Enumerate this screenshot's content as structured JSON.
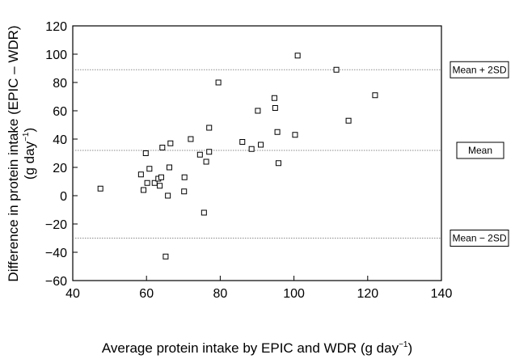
{
  "chart_data": {
    "type": "scatter",
    "title": "",
    "xlabel": {
      "main": "Average protein intake by EPIC and WDR (g day",
      "sup": "−1",
      "close": ")"
    },
    "ylabel": {
      "line1": "Difference in protein intake (EPIC – WDR)",
      "line2_main": "(g day",
      "line2_sup": "−1",
      "line2_close": ")"
    },
    "xlim": [
      40,
      140
    ],
    "ylim": [
      -60,
      120
    ],
    "xticks": [
      40,
      60,
      80,
      100,
      120,
      140
    ],
    "yticks": [
      -60,
      -40,
      -20,
      0,
      20,
      40,
      60,
      80,
      100,
      120
    ],
    "xtick_labels": [
      "40",
      "60",
      "80",
      "100",
      "120",
      "140"
    ],
    "ytick_labels": [
      "−60",
      "−40",
      "−20",
      "0",
      "20",
      "40",
      "60",
      "80",
      "100",
      "120"
    ],
    "grid": false,
    "marker": "open-square",
    "reference_lines": [
      {
        "label": "Mean + 2SD",
        "y": 89
      },
      {
        "label": "Mean",
        "y": 32
      },
      {
        "label": "Mean − 2SD",
        "y": -30
      }
    ],
    "points": [
      {
        "x": 47.5,
        "y": 5
      },
      {
        "x": 58.5,
        "y": 15
      },
      {
        "x": 59.2,
        "y": 4
      },
      {
        "x": 59.8,
        "y": 30
      },
      {
        "x": 60.2,
        "y": 9
      },
      {
        "x": 60.8,
        "y": 19
      },
      {
        "x": 62.2,
        "y": 9
      },
      {
        "x": 63.2,
        "y": 12
      },
      {
        "x": 63.6,
        "y": 7
      },
      {
        "x": 64.0,
        "y": 13
      },
      {
        "x": 64.3,
        "y": 34
      },
      {
        "x": 65.2,
        "y": -43
      },
      {
        "x": 65.8,
        "y": 0
      },
      {
        "x": 66.2,
        "y": 20
      },
      {
        "x": 66.5,
        "y": 37
      },
      {
        "x": 70.2,
        "y": 3
      },
      {
        "x": 70.3,
        "y": 13
      },
      {
        "x": 72.0,
        "y": 40
      },
      {
        "x": 74.5,
        "y": 29
      },
      {
        "x": 75.6,
        "y": -12
      },
      {
        "x": 76.2,
        "y": 24
      },
      {
        "x": 77.0,
        "y": 31
      },
      {
        "x": 77.0,
        "y": 48
      },
      {
        "x": 79.5,
        "y": 80
      },
      {
        "x": 86.0,
        "y": 38
      },
      {
        "x": 88.5,
        "y": 33
      },
      {
        "x": 90.2,
        "y": 60
      },
      {
        "x": 91.0,
        "y": 36
      },
      {
        "x": 94.7,
        "y": 69
      },
      {
        "x": 94.9,
        "y": 62
      },
      {
        "x": 95.5,
        "y": 45
      },
      {
        "x": 95.8,
        "y": 23
      },
      {
        "x": 100.3,
        "y": 43
      },
      {
        "x": 101.0,
        "y": 99
      },
      {
        "x": 111.5,
        "y": 89
      },
      {
        "x": 114.8,
        "y": 53
      },
      {
        "x": 122.0,
        "y": 71
      }
    ]
  }
}
